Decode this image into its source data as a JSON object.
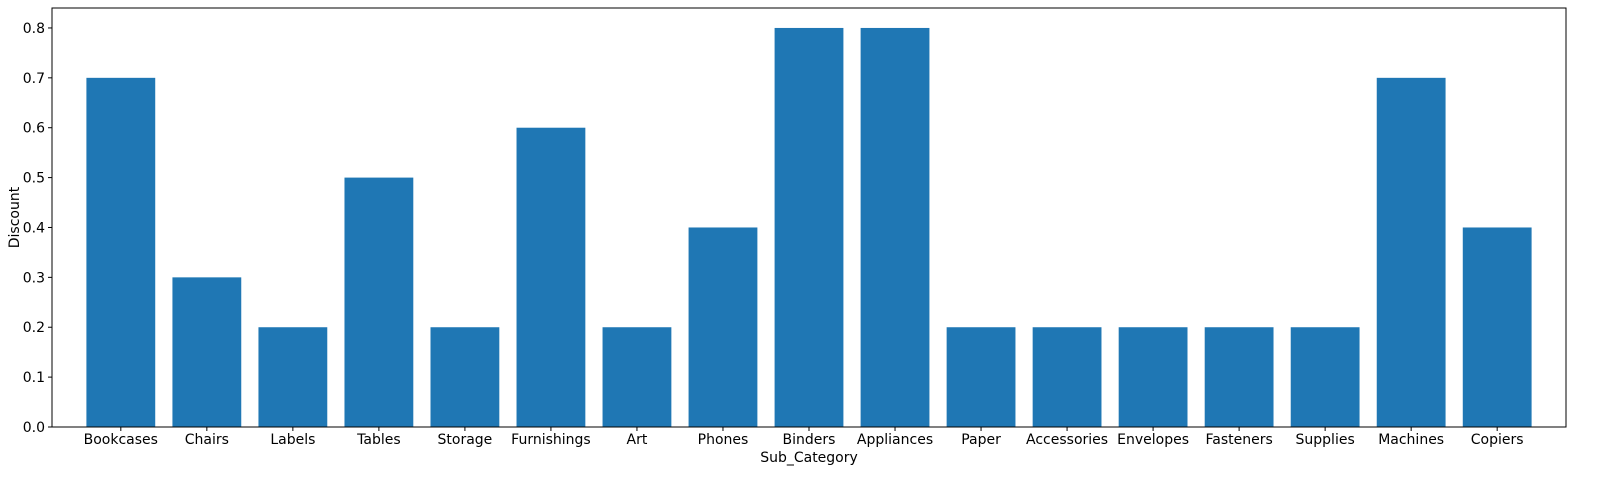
{
  "chart_data": {
    "type": "bar",
    "title": "",
    "xlabel": "Sub_Category",
    "ylabel": "Discount",
    "categories": [
      "Bookcases",
      "Chairs",
      "Labels",
      "Tables",
      "Storage",
      "Furnishings",
      "Art",
      "Phones",
      "Binders",
      "Appliances",
      "Paper",
      "Accessories",
      "Envelopes",
      "Fasteners",
      "Supplies",
      "Machines",
      "Copiers"
    ],
    "values": [
      0.7,
      0.3,
      0.2,
      0.5,
      0.2,
      0.6,
      0.2,
      0.4,
      0.8,
      0.8,
      0.2,
      0.2,
      0.2,
      0.2,
      0.2,
      0.7,
      0.4
    ],
    "ylim": [
      0,
      0.84
    ],
    "yticks": [
      "0.0",
      "0.1",
      "0.2",
      "0.3",
      "0.4",
      "0.5",
      "0.6",
      "0.7",
      "0.8"
    ],
    "grid": false,
    "legend": "none",
    "colors": {
      "bar": "#1f77b4",
      "axis": "#000000",
      "background": "#ffffff"
    }
  }
}
